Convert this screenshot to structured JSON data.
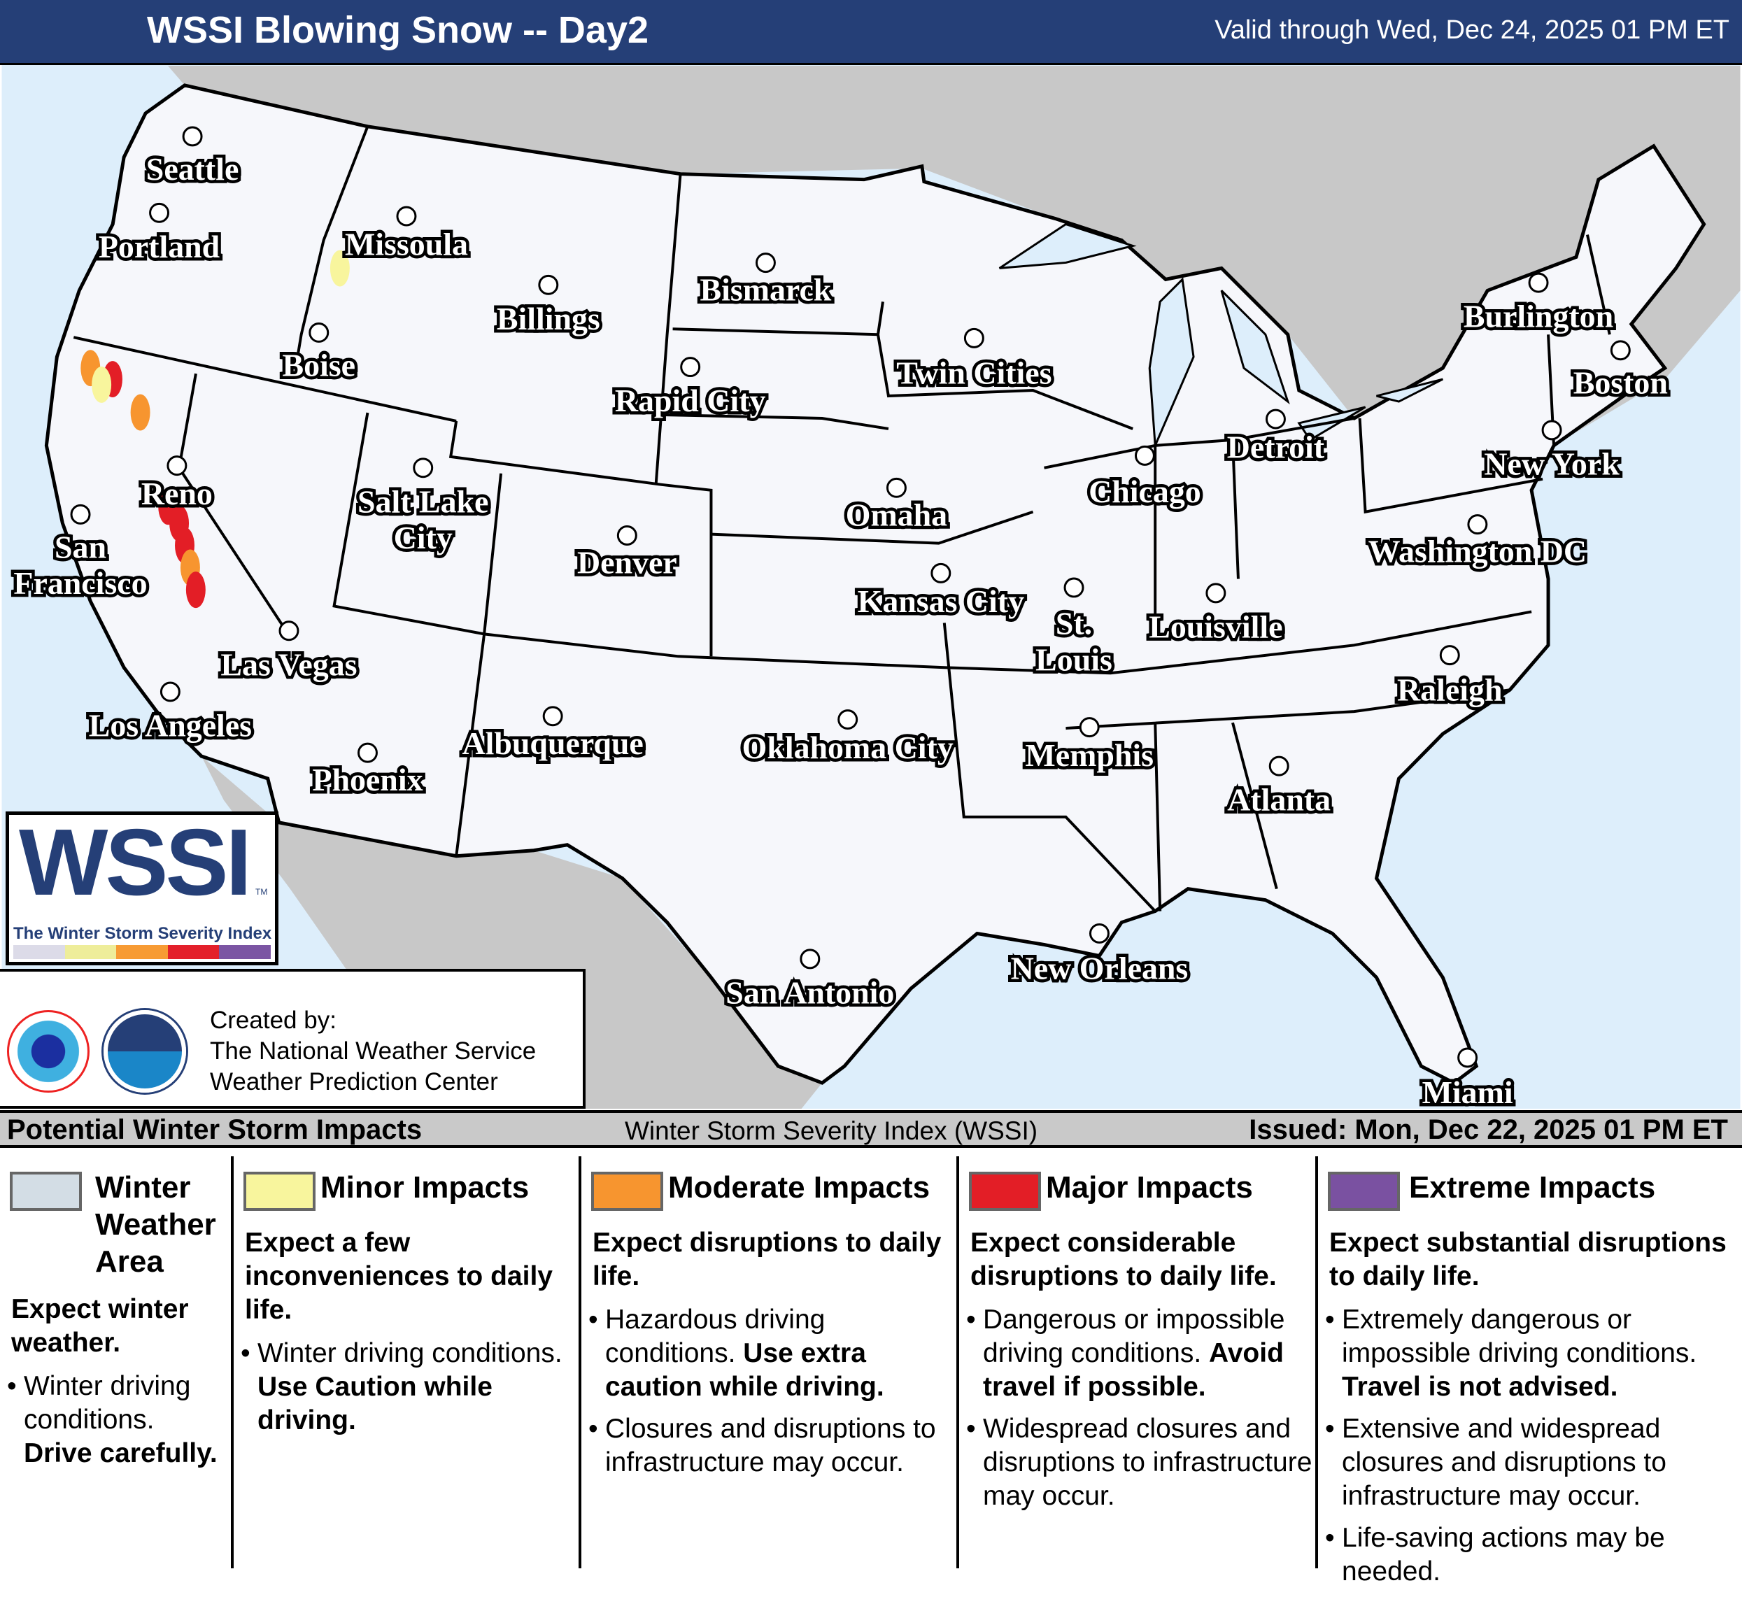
{
  "header": {
    "title": "WSSI Blowing Snow -- Day2",
    "valid": "Valid through Wed, Dec 24, 2025 01 PM ET",
    "color": "#253f77"
  },
  "map": {
    "colors": {
      "ocean": "#ddeefb",
      "foreign_land": "#c8c8c8",
      "us_land": "#f6f7fb",
      "winter_weather": "#d3dde5",
      "minor": "#f8f59d",
      "moderate": "#f7952f",
      "major": "#e31e26",
      "extreme": "#7a51a1"
    },
    "cities": [
      {
        "name": "Seattle"
      },
      {
        "name": "Portland"
      },
      {
        "name": "Missoula"
      },
      {
        "name": "Billings"
      },
      {
        "name": "Bismarck"
      },
      {
        "name": "Boise"
      },
      {
        "name": "Rapid City"
      },
      {
        "name": "Twin Cities"
      },
      {
        "name": "Burlington"
      },
      {
        "name": "Boston"
      },
      {
        "name": "Detroit"
      },
      {
        "name": "New York"
      },
      {
        "name": "Chicago"
      },
      {
        "name": "Reno"
      },
      {
        "name": "Salt Lake City"
      },
      {
        "name": "Omaha"
      },
      {
        "name": "San Francisco"
      },
      {
        "name": "Denver"
      },
      {
        "name": "Washington DC"
      },
      {
        "name": "Kansas City"
      },
      {
        "name": "St. Louis"
      },
      {
        "name": "Louisville"
      },
      {
        "name": "Las Vegas"
      },
      {
        "name": "Raleigh"
      },
      {
        "name": "Los Angeles"
      },
      {
        "name": "Albuquerque"
      },
      {
        "name": "Oklahoma City"
      },
      {
        "name": "Memphis"
      },
      {
        "name": "Phoenix"
      },
      {
        "name": "Atlanta"
      },
      {
        "name": "New Orleans"
      },
      {
        "name": "San Antonio"
      },
      {
        "name": "Miami"
      }
    ]
  },
  "logo": {
    "word": "WSSI",
    "tm": "TM",
    "subtitle": "The Winter Storm Severity Index",
    "bar_colors": [
      "#dcdbe8",
      "#eeed9a",
      "#f79b34",
      "#e3202b",
      "#7b55a3"
    ]
  },
  "credits": {
    "line1": "Created by:",
    "line2": "The National Weather Service",
    "line3": "Weather Prediction Center",
    "nws_seal": "National Weather Service",
    "noaa_seal": "NOAA"
  },
  "bar": {
    "left": "Potential Winter Storm Impacts",
    "middle": "Winter Storm Severity Index (WSSI)",
    "right": "Issued: Mon, Dec 22, 2025 01 PM ET"
  },
  "legend": [
    {
      "title": "Winter Weather Area",
      "color": "#d3dde5",
      "lead": "Expect winter weather.",
      "bullets": [
        {
          "text": "Winter driving conditions. ",
          "bold": "Drive carefully."
        }
      ]
    },
    {
      "title": "Minor Impacts",
      "color": "#f8f59d",
      "lead": "Expect a few inconveniences to daily life.",
      "bullets": [
        {
          "text": "Winter driving conditions. ",
          "bold": "Use Caution while driving."
        }
      ]
    },
    {
      "title": "Moderate Impacts",
      "color": "#f7952f",
      "lead": "Expect disruptions to daily life.",
      "bullets": [
        {
          "text": "Hazardous driving conditions. ",
          "bold": "Use extra caution while driving."
        },
        {
          "text": "Closures and disruptions to infrastructure may occur.",
          "bold": ""
        }
      ]
    },
    {
      "title": "Major Impacts",
      "color": "#e31e26",
      "lead": "Expect considerable disruptions to daily life.",
      "bullets": [
        {
          "text": "Dangerous or impossible driving conditions. ",
          "bold": "Avoid travel if possible."
        },
        {
          "text": "Widespread closures and disruptions to infrastructure may occur.",
          "bold": ""
        }
      ]
    },
    {
      "title": "Extreme Impacts",
      "color": "#7a51a1",
      "lead": "Expect substantial disruptions to daily life.",
      "bullets": [
        {
          "text": "Extremely dangerous or impossible driving conditions. ",
          "bold": "Travel is not advised."
        },
        {
          "text": "Extensive and widespread closures and disruptions to infrastructure may occur.",
          "bold": ""
        },
        {
          "text": "Life-saving actions may be needed.",
          "bold": ""
        }
      ]
    }
  ]
}
